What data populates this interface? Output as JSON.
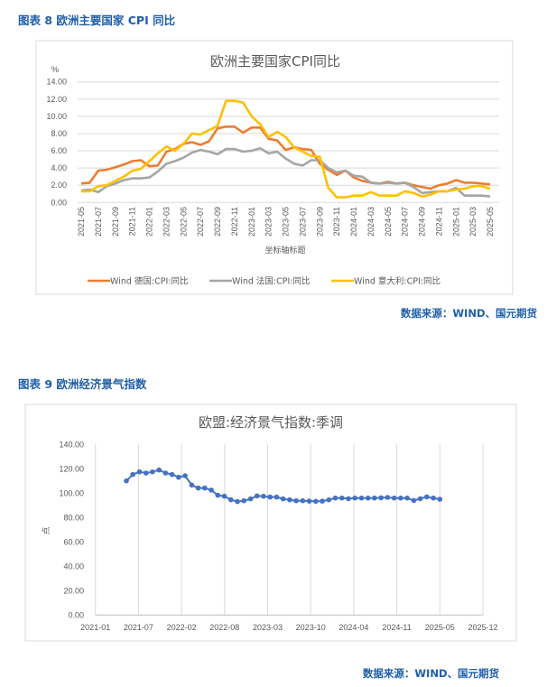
{
  "figure8": {
    "header": "图表 8 欧洲主要国家 CPI 同比",
    "source": "数据来源：WIND、国元期货"
  },
  "figure9": {
    "header": "图表 9 欧洲经济景气指数",
    "source": "数据来源：WIND、国元期货"
  },
  "chart_data": [
    {
      "type": "line",
      "title": "欧洲主要国家CPI同比",
      "ylabel": "%",
      "xlabel": "坐标轴标题",
      "ylim": [
        0,
        14
      ],
      "yticks": [
        "0.00",
        "2.00",
        "4.00",
        "6.00",
        "8.00",
        "10.00",
        "12.00",
        "14.00"
      ],
      "grid": "horizontal",
      "legend": "bottom",
      "x": [
        "2021-05",
        "2021-06",
        "2021-07",
        "2021-08",
        "2021-09",
        "2021-10",
        "2021-11",
        "2021-12",
        "2022-01",
        "2022-02",
        "2022-03",
        "2022-04",
        "2022-05",
        "2022-06",
        "2022-07",
        "2022-08",
        "2022-09",
        "2022-10",
        "2022-11",
        "2022-12",
        "2023-01",
        "2023-02",
        "2023-03",
        "2023-04",
        "2023-05",
        "2023-06",
        "2023-07",
        "2023-08",
        "2023-09",
        "2023-10",
        "2023-11",
        "2023-12",
        "2024-01",
        "2024-02",
        "2024-03",
        "2024-04",
        "2024-05",
        "2024-06",
        "2024-07",
        "2024-08",
        "2024-09",
        "2024-10",
        "2024-11",
        "2024-12",
        "2025-01",
        "2025-02",
        "2025-03",
        "2025-04",
        "2025-05"
      ],
      "series": [
        {
          "name": "Wind 德国:CPI:同比",
          "color": "#ed7d31",
          "values": [
            2.2,
            2.3,
            3.7,
            3.8,
            4.1,
            4.4,
            4.8,
            4.9,
            4.2,
            4.3,
            5.9,
            6.2,
            6.8,
            7.0,
            6.7,
            7.1,
            8.6,
            8.8,
            8.8,
            8.1,
            8.7,
            8.7,
            7.4,
            7.2,
            6.1,
            6.4,
            6.2,
            6.1,
            4.5,
            3.8,
            3.2,
            3.7,
            2.9,
            2.5,
            2.3,
            2.2,
            2.4,
            2.2,
            2.3,
            2.0,
            1.8,
            1.6,
            2.0,
            2.2,
            2.6,
            2.3,
            2.3,
            2.2,
            2.1
          ]
        },
        {
          "name": "Wind 法国:CPI:同比",
          "color": "#a5a5a5",
          "values": [
            1.4,
            1.5,
            1.2,
            1.9,
            2.2,
            2.6,
            2.8,
            2.8,
            2.9,
            3.6,
            4.5,
            4.8,
            5.2,
            5.8,
            6.1,
            5.9,
            5.6,
            6.2,
            6.2,
            5.9,
            6.0,
            6.3,
            5.7,
            5.9,
            5.1,
            4.5,
            4.3,
            4.9,
            4.9,
            4.0,
            3.5,
            3.7,
            3.1,
            3.0,
            2.3,
            2.2,
            2.3,
            2.2,
            2.3,
            1.8,
            1.1,
            1.2,
            1.3,
            1.3,
            1.7,
            0.8,
            0.8,
            0.8,
            0.7
          ]
        },
        {
          "name": "Wind 意大利:CPI:同比",
          "color": "#ffc000",
          "values": [
            1.3,
            1.3,
            1.9,
            2.0,
            2.5,
            3.0,
            3.7,
            3.9,
            4.8,
            5.7,
            6.5,
            6.0,
            6.8,
            8.0,
            7.9,
            8.4,
            8.9,
            11.8,
            11.8,
            11.6,
            10.0,
            9.1,
            7.6,
            8.2,
            7.6,
            6.4,
            5.9,
            5.4,
            5.3,
            1.7,
            0.6,
            0.6,
            0.8,
            0.8,
            1.2,
            0.8,
            0.8,
            0.8,
            1.3,
            1.1,
            0.7,
            0.9,
            1.3,
            1.3,
            1.5,
            1.6,
            1.9,
            1.9,
            1.6
          ]
        }
      ]
    },
    {
      "type": "line",
      "title": "欧盟:经济景气指数:季调",
      "ylabel": "点",
      "ylim": [
        0,
        140
      ],
      "yticks": [
        "0.00",
        "20.00",
        "40.00",
        "60.00",
        "80.00",
        "100.00",
        "120.00",
        "140.00"
      ],
      "xticks": [
        "2021-01",
        "2021-07",
        "2022-02",
        "2022-08",
        "2023-03",
        "2023-10",
        "2024-04",
        "2024-11",
        "2025-05",
        "2025-12"
      ],
      "grid": "vertical",
      "markers": true,
      "color": "#4472c4",
      "x_start": "2021-05",
      "x_end": "2025-05",
      "values": [
        110.1,
        115.3,
        117.5,
        116.5,
        117.5,
        119.0,
        116.5,
        115.3,
        113.1,
        114.3,
        106.7,
        104.2,
        104.2,
        102.5,
        98.3,
        97.5,
        94.6,
        93.1,
        93.8,
        95.3,
        97.8,
        97.5,
        96.8,
        96.8,
        95.3,
        94.6,
        93.8,
        93.8,
        93.5,
        93.3,
        93.5,
        94.5,
        96.0,
        96.0,
        95.5,
        96.0,
        96.0,
        96.0,
        96.0,
        96.2,
        96.5,
        96.0,
        96.0,
        96.0,
        94.0,
        95.5,
        97.0,
        96.0,
        95.0
      ]
    }
  ]
}
